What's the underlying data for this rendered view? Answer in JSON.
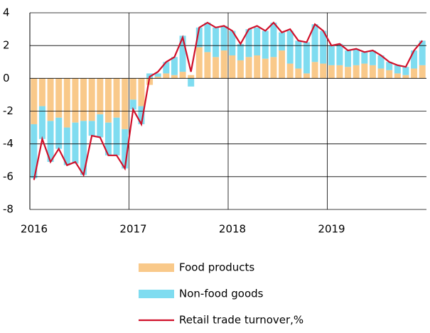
{
  "chart_data": {
    "type": "bar",
    "categories": [
      "2016",
      null,
      null,
      null,
      null,
      null,
      null,
      null,
      null,
      null,
      null,
      null,
      "2017",
      null,
      null,
      null,
      null,
      null,
      null,
      null,
      null,
      null,
      null,
      null,
      "2018",
      null,
      null,
      null,
      null,
      null,
      null,
      null,
      null,
      null,
      null,
      null,
      "2019",
      null,
      null,
      null,
      null,
      null,
      null,
      null,
      null,
      null,
      null,
      null
    ],
    "series": [
      {
        "name": "Food products",
        "color": "#f9c98a",
        "values": [
          -2.8,
          -1.7,
          -2.6,
          -2.4,
          -3.0,
          -2.7,
          -2.6,
          -2.6,
          -2.2,
          -2.7,
          -2.4,
          -3.1,
          -1.3,
          -1.7,
          -0.4,
          0.1,
          0.3,
          0.2,
          0.4,
          0.2,
          1.9,
          1.6,
          1.3,
          1.7,
          1.4,
          1.1,
          1.3,
          1.4,
          1.2,
          1.3,
          1.7,
          0.9,
          0.6,
          0.3,
          1.0,
          0.9,
          0.8,
          0.8,
          0.7,
          0.8,
          0.9,
          0.8,
          0.6,
          0.5,
          0.3,
          0.2,
          0.6,
          0.8
        ]
      },
      {
        "name": "Non-food goods",
        "color": "#7fdcf0",
        "values": [
          -3.3,
          -2.0,
          -2.5,
          -1.9,
          -2.3,
          -2.5,
          -3.3,
          -0.9,
          -1.4,
          -2.0,
          -2.3,
          -2.4,
          -0.6,
          -1.1,
          0.3,
          0.2,
          0.7,
          1.1,
          2.2,
          -0.5,
          1.2,
          1.8,
          1.8,
          1.5,
          1.5,
          1.0,
          1.7,
          1.7,
          1.7,
          2.1,
          1.1,
          2.0,
          1.7,
          1.9,
          2.3,
          2.0,
          1.2,
          1.3,
          1.0,
          1.0,
          0.7,
          0.9,
          0.8,
          0.5,
          0.5,
          0.5,
          1.1,
          1.5
        ]
      },
      {
        "name": "Retail trade turnover,%",
        "type": "line",
        "color": "#d0102a",
        "values": [
          -6.2,
          -3.7,
          -5.1,
          -4.3,
          -5.3,
          -5.1,
          -5.9,
          -3.5,
          -3.6,
          -4.7,
          -4.7,
          -5.5,
          -1.9,
          -2.8,
          0.1,
          0.4,
          1.0,
          1.3,
          2.5,
          0.4,
          3.1,
          3.4,
          3.1,
          3.2,
          2.9,
          2.1,
          3.0,
          3.2,
          2.9,
          3.4,
          2.8,
          3.0,
          2.3,
          2.2,
          3.3,
          2.9,
          2.0,
          2.1,
          1.7,
          1.8,
          1.6,
          1.7,
          1.4,
          1.0,
          0.8,
          0.7,
          1.7,
          2.3
        ]
      }
    ],
    "ylim": [
      -8,
      4
    ],
    "yticks": [
      -8,
      -6,
      -4,
      -2,
      0,
      2,
      4
    ],
    "grid": true
  }
}
